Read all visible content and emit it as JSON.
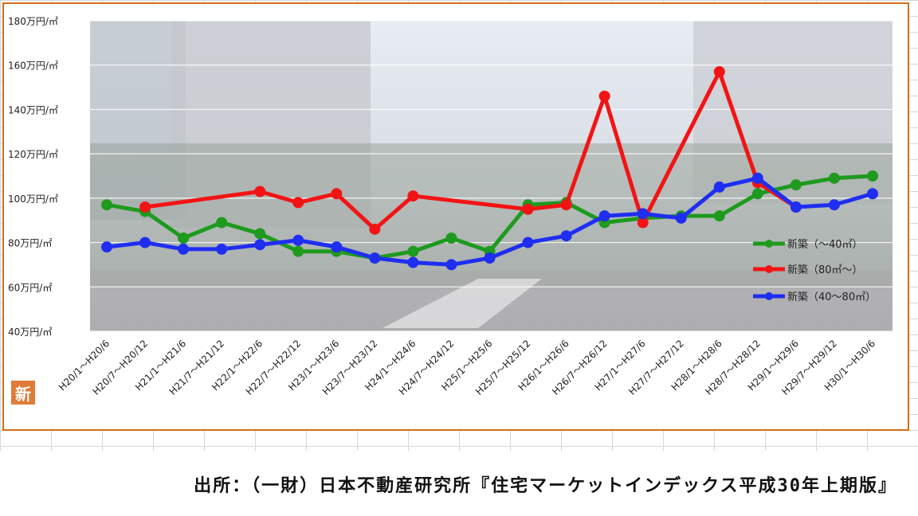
{
  "source": "出所：（一財）日本不動産研究所『住宅マーケットインデックス平成30年上期版』",
  "badge": "新",
  "colors": {
    "green": "#1e9a1e",
    "red": "#f21414",
    "blue": "#1f2ef0",
    "frame": "#d26f1a"
  },
  "chart_data": {
    "type": "line",
    "title": "",
    "xlabel": "",
    "ylabel": "",
    "ylim": [
      40,
      180
    ],
    "yticks": [
      "40万円/㎡",
      "60万円/㎡",
      "80万円/㎡",
      "100万円/㎡",
      "120万円/㎡",
      "140万円/㎡",
      "160万円/㎡",
      "180万円/㎡"
    ],
    "ytick_values": [
      40,
      60,
      80,
      100,
      120,
      140,
      160,
      180
    ],
    "grid": true,
    "legend_position": "right",
    "categories": [
      "H20/1～H20/6",
      "H20/7～H20/12",
      "H21/1～H21/6",
      "H21/7～H21/12",
      "H22/1～H22/6",
      "H22/7～H22/12",
      "H23/1～H23/6",
      "H23/7～H23/12",
      "H24/1～H24/6",
      "H24/7～H24/12",
      "H25/1～H25/6",
      "H25/7～H25/12",
      "H26/1～H26/6",
      "H26/7～H26/12",
      "H27/1～H27/6",
      "H27/7～H27/12",
      "H28/1～H28/6",
      "H28/7～H28/12",
      "H29/1～H29/6",
      "H29/7～H29/12",
      "H30/1～H30/6"
    ],
    "series": [
      {
        "name": "新築（～40㎡）",
        "color": "#1e9a1e",
        "values": [
          97,
          94,
          82,
          89,
          84,
          76,
          76,
          73,
          76,
          82,
          76,
          97,
          98,
          89,
          91,
          92,
          92,
          102,
          106,
          109,
          110
        ]
      },
      {
        "name": "新築（80㎡～）",
        "color": "#f21414",
        "values": [
          null,
          96,
          null,
          null,
          103,
          98,
          102,
          86,
          101,
          null,
          null,
          95,
          97,
          146,
          89,
          null,
          157,
          107,
          96,
          null,
          null
        ]
      },
      {
        "name": "新築（40～80㎡）",
        "color": "#1f2ef0",
        "values": [
          78,
          80,
          77,
          77,
          79,
          81,
          78,
          73,
          71,
          70,
          73,
          80,
          83,
          92,
          93,
          91,
          105,
          109,
          96,
          97,
          102
        ]
      }
    ]
  }
}
